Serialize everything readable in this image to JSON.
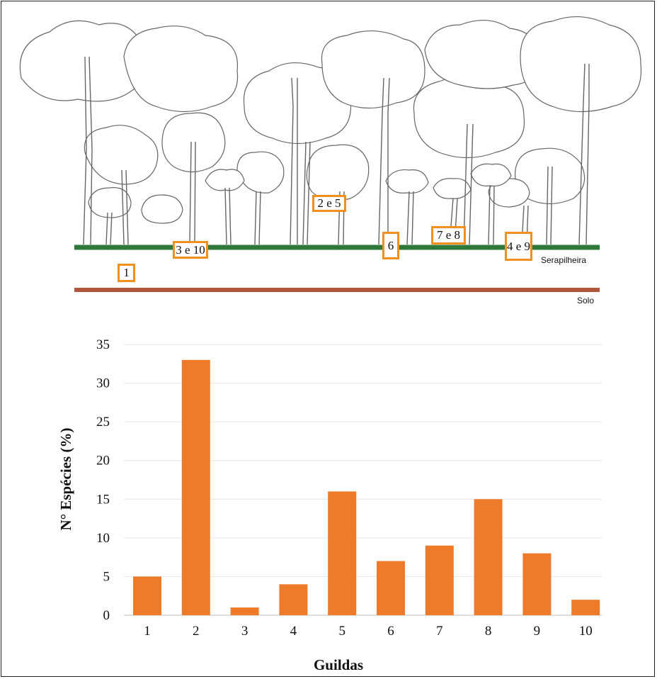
{
  "diagram": {
    "zones": [
      "1",
      "3 e 10",
      "2 e 5",
      "6",
      "7 e 8",
      "4 e 9"
    ],
    "layers": {
      "litter": "Serapilheira",
      "soil": "Solo"
    },
    "colors": {
      "litter": "#2f7a3a",
      "soil": "#b0563b",
      "box_border": "#f0901e"
    }
  },
  "chart_data": {
    "type": "bar",
    "categories": [
      "1",
      "2",
      "3",
      "4",
      "5",
      "6",
      "7",
      "8",
      "9",
      "10"
    ],
    "values": [
      5,
      33,
      1,
      4,
      16,
      7,
      9,
      15,
      8,
      2
    ],
    "xlabel": "Guildas",
    "ylabel": "N° Espécies (%)",
    "ylim": [
      0,
      35
    ],
    "yticks": [
      "0",
      "5",
      "10",
      "15",
      "20",
      "25",
      "30",
      "35"
    ],
    "grid": true,
    "bar_color": "#ee7b2a"
  }
}
